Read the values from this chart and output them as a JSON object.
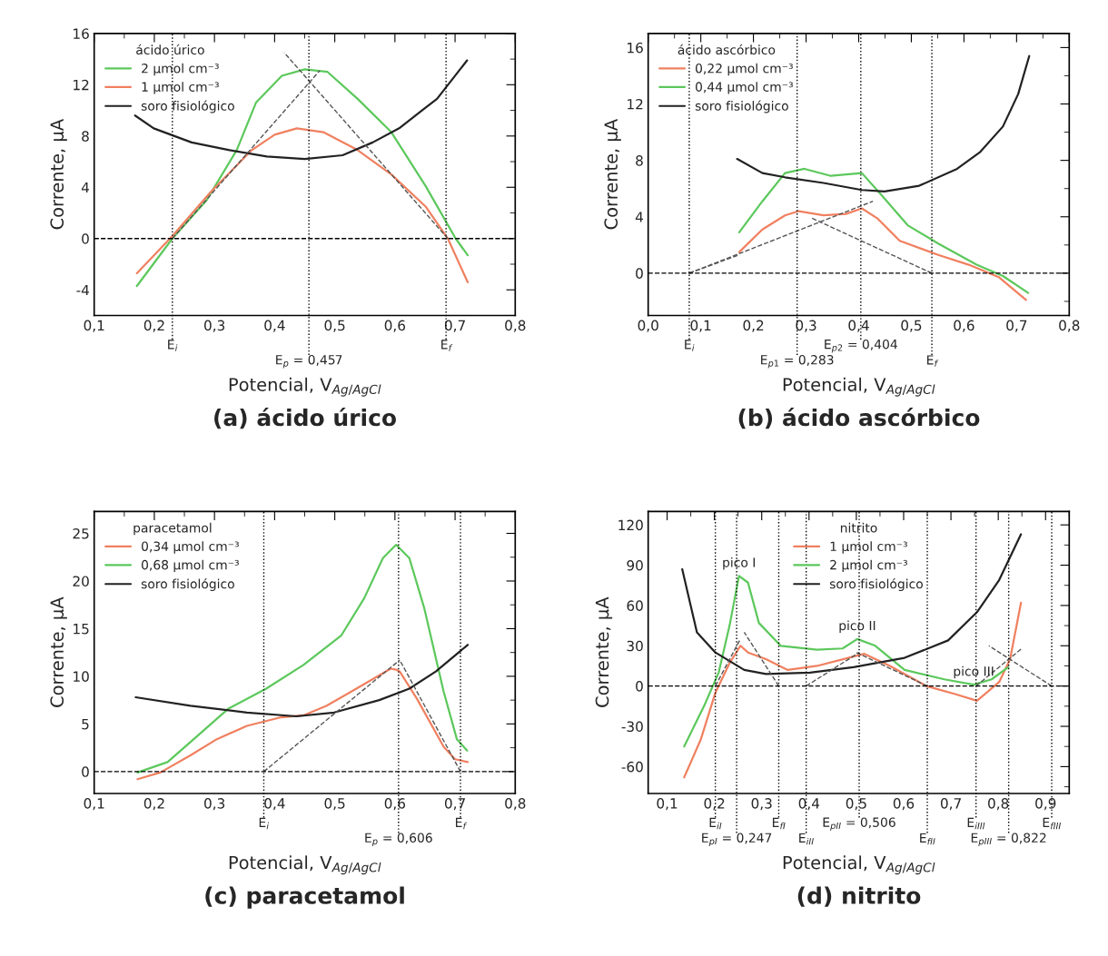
{
  "chart_data": [
    {
      "type": "line",
      "title": "(a) ácido úrico",
      "xlabel": "Potencial, V$_{Ag/AgCl}$",
      "ylabel": "Corrente, µA",
      "legend": "upper left",
      "legend_title": "ácido úrico",
      "xlim": [
        0.1,
        0.8
      ],
      "ylim": [
        -6,
        16
      ],
      "xticks": [
        {
          "value": 0.1,
          "label": "0,1"
        },
        {
          "value": 0.2,
          "label": "0,2"
        },
        {
          "value": 0.3,
          "label": "0,3"
        },
        {
          "value": 0.4,
          "label": "0,4"
        },
        {
          "value": 0.5,
          "label": "0,5"
        },
        {
          "value": 0.6,
          "label": "0,6"
        },
        {
          "value": 0.7,
          "label": "0,7"
        },
        {
          "value": 0.8,
          "label": "0,8"
        }
      ],
      "yticks": [
        -4,
        0,
        4,
        8,
        12,
        16
      ],
      "series": [
        {
          "name": "2 µmol cm⁻³",
          "color": "#5cc85c",
          "x": [
            0.171,
            0.23,
            0.287,
            0.337,
            0.369,
            0.412,
            0.45,
            0.488,
            0.538,
            0.594,
            0.651,
            0.701,
            0.721
          ],
          "values": [
            -3.7,
            0,
            3.0,
            6.9,
            10.6,
            12.7,
            13.2,
            13.0,
            10.9,
            8.3,
            4.1,
            0,
            -1.3
          ]
        },
        {
          "name": "1 µmol cm⁻³",
          "color": "#f08060",
          "x": [
            0.171,
            0.23,
            0.293,
            0.362,
            0.4,
            0.437,
            0.481,
            0.538,
            0.594,
            0.651,
            0.688,
            0.721
          ],
          "values": [
            -2.7,
            0.2,
            3.6,
            6.9,
            8.1,
            8.6,
            8.3,
            6.9,
            5.0,
            2.5,
            0,
            -3.4
          ]
        },
        {
          "name": "soro fisiológico",
          "color": "#222222",
          "x": [
            0.168,
            0.199,
            0.262,
            0.325,
            0.387,
            0.45,
            0.513,
            0.563,
            0.607,
            0.645,
            0.67,
            0.72
          ],
          "values": [
            9.6,
            8.6,
            7.5,
            6.9,
            6.4,
            6.2,
            6.5,
            7.5,
            8.6,
            10.0,
            10.9,
            13.9
          ]
        },
        {
          "color": "#555555",
          "line_style": "dashed",
          "x": [
            0.23,
            0.475
          ],
          "values": [
            0,
            13.1
          ]
        },
        {
          "color": "#555555",
          "line_style": "dashed",
          "x": [
            0.688,
            0.416
          ],
          "values": [
            0,
            14.5
          ]
        }
      ],
      "ref_lines": [
        {
          "axis": "y",
          "value": 0,
          "line_style": "dashed"
        },
        {
          "axis": "x",
          "value": 0.23,
          "label": "E$_{i}$",
          "line_style": "dotted"
        },
        {
          "axis": "x",
          "value": 0.457,
          "label": "E$_{p}$ = 0,457",
          "line_style": "dotted"
        },
        {
          "axis": "x",
          "value": 0.685,
          "label": "E$_{f}$",
          "line_style": "dotted"
        }
      ]
    },
    {
      "type": "line",
      "title": "(b) ácido ascórbico",
      "xlabel": "Potencial, V$_{Ag/AgCl}$",
      "ylabel": "Corrente, µA",
      "legend": "upper left",
      "legend_title": "ácido ascórbico",
      "xlim": [
        0.0,
        0.8
      ],
      "ylim": [
        -3,
        17
      ],
      "xticks": [
        {
          "value": 0.0,
          "label": "0,0"
        },
        {
          "value": 0.1,
          "label": "0,1"
        },
        {
          "value": 0.2,
          "label": "0,2"
        },
        {
          "value": 0.3,
          "label": "0,3"
        },
        {
          "value": 0.4,
          "label": "0,4"
        },
        {
          "value": 0.5,
          "label": "0,5"
        },
        {
          "value": 0.6,
          "label": "0,6"
        },
        {
          "value": 0.7,
          "label": "0,7"
        },
        {
          "value": 0.8,
          "label": "0,8"
        }
      ],
      "yticks": [
        0,
        4,
        8,
        12,
        16
      ],
      "series": [
        {
          "name": "0,22 µmol cm⁻³",
          "color": "#f08060",
          "x": [
            0.173,
            0.217,
            0.26,
            0.286,
            0.333,
            0.376,
            0.406,
            0.435,
            0.478,
            0.551,
            0.609,
            0.667,
            0.718
          ],
          "values": [
            1.5,
            3.1,
            4.1,
            4.4,
            4.1,
            4.2,
            4.6,
            3.9,
            2.3,
            1.3,
            0.6,
            -0.3,
            -1.9
          ]
        },
        {
          "name": "0,44 µmol cm⁻³",
          "color": "#5cc85c",
          "x": [
            0.173,
            0.217,
            0.26,
            0.297,
            0.347,
            0.406,
            0.442,
            0.493,
            0.551,
            0.624,
            0.674,
            0.722
          ],
          "values": [
            2.9,
            5.1,
            7.1,
            7.4,
            6.9,
            7.1,
            5.6,
            3.4,
            2.1,
            0.6,
            -0.2,
            -1.4
          ]
        },
        {
          "name": "soro fisiológico",
          "color": "#222222",
          "x": [
            0.169,
            0.217,
            0.26,
            0.333,
            0.406,
            0.449,
            0.515,
            0.587,
            0.631,
            0.674,
            0.703,
            0.724
          ],
          "values": [
            8.1,
            7.1,
            6.8,
            6.4,
            5.9,
            5.8,
            6.2,
            7.4,
            8.6,
            10.4,
            12.7,
            15.4
          ]
        },
        {
          "color": "#555555",
          "line_style": "dashed",
          "x": [
            0.078,
            0.427
          ],
          "values": [
            0,
            5.1
          ]
        },
        {
          "color": "#555555",
          "line_style": "dashed",
          "x": [
            0.539,
            0.311
          ],
          "values": [
            0,
            3.9
          ]
        },
        {
          "color": "#555555",
          "line_style": "dashed",
          "x": [
            0.078,
            0.173
          ],
          "values": [
            0,
            1.3
          ]
        }
      ],
      "ref_lines": [
        {
          "axis": "y",
          "value": 0,
          "line_style": "dashed"
        },
        {
          "axis": "x",
          "value": 0.078,
          "label": "E$_{i}$",
          "line_style": "dotted"
        },
        {
          "axis": "x",
          "value": 0.283,
          "label": "E$_{p1}$ = 0,283",
          "line_style": "dotted"
        },
        {
          "axis": "x",
          "value": 0.404,
          "label": "E$_{p2}$ = 0,404",
          "line_style": "dotted"
        },
        {
          "axis": "x",
          "value": 0.539,
          "label": "E$_{f}$",
          "line_style": "dotted"
        }
      ]
    },
    {
      "type": "line",
      "title": "(c) paracetamol",
      "xlabel": "Potencial, V$_{Ag/AgCl}$",
      "ylabel": "Corrente, µA",
      "legend": "upper left",
      "legend_title": "paracetamol",
      "xlim": [
        0.1,
        0.8
      ],
      "ylim": [
        -2.3,
        27.3
      ],
      "xticks": [
        {
          "value": 0.1,
          "label": "0,1"
        },
        {
          "value": 0.2,
          "label": "0,2"
        },
        {
          "value": 0.3,
          "label": "0,3"
        },
        {
          "value": 0.4,
          "label": "0,4"
        },
        {
          "value": 0.5,
          "label": "0,5"
        },
        {
          "value": 0.6,
          "label": "0,6"
        },
        {
          "value": 0.7,
          "label": "0,7"
        },
        {
          "value": 0.8,
          "label": "0,8"
        }
      ],
      "yticks": [
        0,
        5,
        10,
        15,
        20,
        25
      ],
      "series": [
        {
          "name": "0,34 µmol cm⁻³",
          "color": "#f08060",
          "x": [
            0.172,
            0.21,
            0.26,
            0.304,
            0.354,
            0.411,
            0.448,
            0.486,
            0.536,
            0.593,
            0.602,
            0.608,
            0.637,
            0.681,
            0.7,
            0.721
          ],
          "values": [
            -0.8,
            -0.1,
            1.7,
            3.4,
            4.8,
            5.7,
            5.9,
            6.9,
            8.7,
            10.8,
            10.7,
            10.5,
            7.6,
            2.6,
            1.3,
            1.0
          ]
        },
        {
          "name": "0,68 µmol cm⁻³",
          "color": "#5cc85c",
          "x": [
            0.172,
            0.222,
            0.26,
            0.323,
            0.386,
            0.448,
            0.511,
            0.549,
            0.58,
            0.602,
            0.624,
            0.649,
            0.681,
            0.703,
            0.72
          ],
          "values": [
            -0.1,
            1.0,
            3.1,
            6.6,
            8.7,
            11.2,
            14.3,
            18.2,
            22.4,
            23.8,
            22.4,
            17.1,
            8.4,
            3.4,
            2.2
          ]
        },
        {
          "name": "soro fisiológico",
          "color": "#222222",
          "x": [
            0.169,
            0.26,
            0.354,
            0.436,
            0.499,
            0.574,
            0.624,
            0.668,
            0.721
          ],
          "values": [
            7.8,
            6.9,
            6.2,
            5.8,
            6.2,
            7.5,
            8.7,
            10.5,
            13.3
          ]
        },
        {
          "color": "#555555",
          "line_style": "dashed",
          "x": [
            0.382,
            0.608
          ],
          "values": [
            0,
            11.7
          ]
        },
        {
          "color": "#555555",
          "line_style": "dashed",
          "x": [
            0.709,
            0.608
          ],
          "values": [
            0,
            11.7
          ]
        }
      ],
      "ref_lines": [
        {
          "axis": "y",
          "value": 0,
          "line_style": "dashed"
        },
        {
          "axis": "x",
          "value": 0.382,
          "label": "E$_{i}$",
          "line_style": "dotted"
        },
        {
          "axis": "x",
          "value": 0.606,
          "label": "E$_{p}$ = 0,606",
          "line_style": "dotted"
        },
        {
          "axis": "x",
          "value": 0.709,
          "label": "E$_{f}$",
          "line_style": "dotted"
        }
      ]
    },
    {
      "type": "line",
      "title": "(d) nitrito",
      "xlabel": "Potencial, V$_{Ag/AgCl}$",
      "ylabel": "Corrente, µA",
      "legend": "upper center",
      "legend_title": "nitrito",
      "xlim": [
        0.06,
        0.95
      ],
      "ylim": [
        -80,
        130
      ],
      "xticks": [
        {
          "value": 0.1,
          "label": "0,1"
        },
        {
          "value": 0.2,
          "label": "0,2"
        },
        {
          "value": 0.3,
          "label": "0,3"
        },
        {
          "value": 0.4,
          "label": "0,4"
        },
        {
          "value": 0.5,
          "label": "0,5"
        },
        {
          "value": 0.6,
          "label": "0,6"
        },
        {
          "value": 0.7,
          "label": "0,7"
        },
        {
          "value": 0.8,
          "label": "0,8"
        },
        {
          "value": 0.9,
          "label": "0,9"
        }
      ],
      "yticks": [
        -60,
        -30,
        0,
        30,
        60,
        90,
        120
      ],
      "series": [
        {
          "name": "1 µmol cm⁻³",
          "color": "#f08060",
          "x": [
            0.136,
            0.171,
            0.202,
            0.232,
            0.255,
            0.271,
            0.309,
            0.355,
            0.417,
            0.494,
            0.517,
            0.571,
            0.648,
            0.709,
            0.755,
            0.802,
            0.825,
            0.848
          ],
          "values": [
            -68,
            -40,
            -5,
            17,
            30,
            25,
            20,
            12,
            15,
            22,
            24,
            15,
            0,
            -6,
            -11,
            3,
            20,
            62
          ]
        },
        {
          "name": "2 µmol cm⁻³",
          "color": "#5cc85c",
          "x": [
            0.136,
            0.178,
            0.209,
            0.232,
            0.252,
            0.271,
            0.294,
            0.34,
            0.417,
            0.471,
            0.502,
            0.54,
            0.602,
            0.686,
            0.748,
            0.786,
            0.821
          ],
          "values": [
            -45,
            -15,
            10,
            45,
            82,
            77,
            47,
            30,
            27,
            28,
            35,
            30,
            12,
            5,
            1,
            5,
            14
          ]
        },
        {
          "name": "soro fisiológico",
          "color": "#222222",
          "x": [
            0.132,
            0.163,
            0.202,
            0.263,
            0.309,
            0.402,
            0.494,
            0.602,
            0.694,
            0.755,
            0.802,
            0.848
          ],
          "values": [
            87,
            40,
            25,
            12,
            9,
            10,
            14,
            21,
            34,
            55,
            79,
            113
          ]
        },
        {
          "color": "#555555",
          "line_style": "dashed",
          "x": [
            0.202,
            0.255
          ],
          "values": [
            0,
            35
          ]
        },
        {
          "color": "#555555",
          "line_style": "dashed",
          "x": [
            0.336,
            0.263
          ],
          "values": [
            0,
            40
          ]
        },
        {
          "color": "#555555",
          "line_style": "dashed",
          "x": [
            0.394,
            0.506
          ],
          "values": [
            0,
            25
          ]
        },
        {
          "color": "#555555",
          "line_style": "dashed",
          "x": [
            0.65,
            0.5
          ],
          "values": [
            0,
            25
          ]
        },
        {
          "color": "#555555",
          "line_style": "dashed",
          "x": [
            0.753,
            0.85
          ],
          "values": [
            0,
            28
          ]
        },
        {
          "color": "#555555",
          "line_style": "dashed",
          "x": [
            0.913,
            0.78
          ],
          "values": [
            0,
            30
          ]
        }
      ],
      "ref_lines": [
        {
          "axis": "y",
          "value": 0,
          "line_style": "dashed"
        },
        {
          "axis": "x",
          "value": 0.202,
          "label": "E$_{iI}$",
          "line_style": "dotted"
        },
        {
          "axis": "x",
          "value": 0.247,
          "label": "E$_{pI}$ = 0,247",
          "line_style": "dotted"
        },
        {
          "axis": "x",
          "value": 0.336,
          "label": "E$_{fI}$",
          "line_style": "dotted"
        },
        {
          "axis": "x",
          "value": 0.394,
          "label": "E$_{iII}$",
          "line_style": "dotted"
        },
        {
          "axis": "x",
          "value": 0.506,
          "label": "E$_{pII}$ = 0,506",
          "line_style": "dotted"
        },
        {
          "axis": "x",
          "value": 0.65,
          "label": "E$_{fII}$",
          "line_style": "dotted"
        },
        {
          "axis": "x",
          "value": 0.753,
          "label": "E$_{iIII}$",
          "line_style": "dotted"
        },
        {
          "axis": "x",
          "value": 0.822,
          "label": "E$_{pIII}$ = 0,822",
          "line_style": "dotted"
        },
        {
          "axis": "x",
          "value": 0.913,
          "label": "E$_{fIII}$",
          "line_style": "dotted"
        }
      ],
      "annotations": [
        {
          "text": "pico I",
          "x": 0.252,
          "y": 82
        },
        {
          "text": "pico II",
          "x": 0.502,
          "y": 35
        },
        {
          "text": "pico III",
          "x": 0.748,
          "y": 1
        }
      ]
    }
  ]
}
